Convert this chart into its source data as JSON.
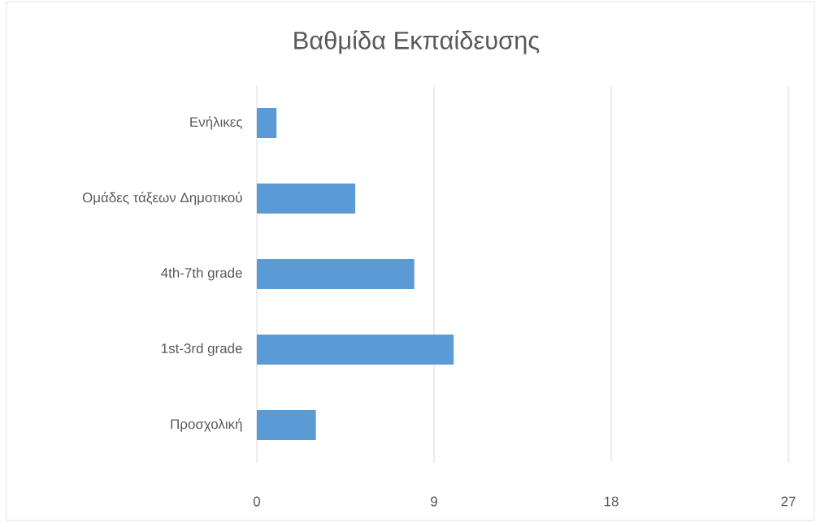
{
  "chart_data": {
    "type": "bar",
    "orientation": "horizontal",
    "title": "Βαθμίδα Εκπαίδευσης",
    "categories": [
      "Ενήλικες",
      "Ομάδες τάξεων Δημοτικού",
      "4th-7th grade",
      "1st-3rd grade",
      "Προσχολική"
    ],
    "values": [
      1,
      5,
      8,
      10,
      3
    ],
    "color": "#5b9bd5",
    "xlim": [
      0,
      27
    ],
    "xticks": [
      0,
      9,
      18,
      27
    ],
    "grid": "x"
  }
}
